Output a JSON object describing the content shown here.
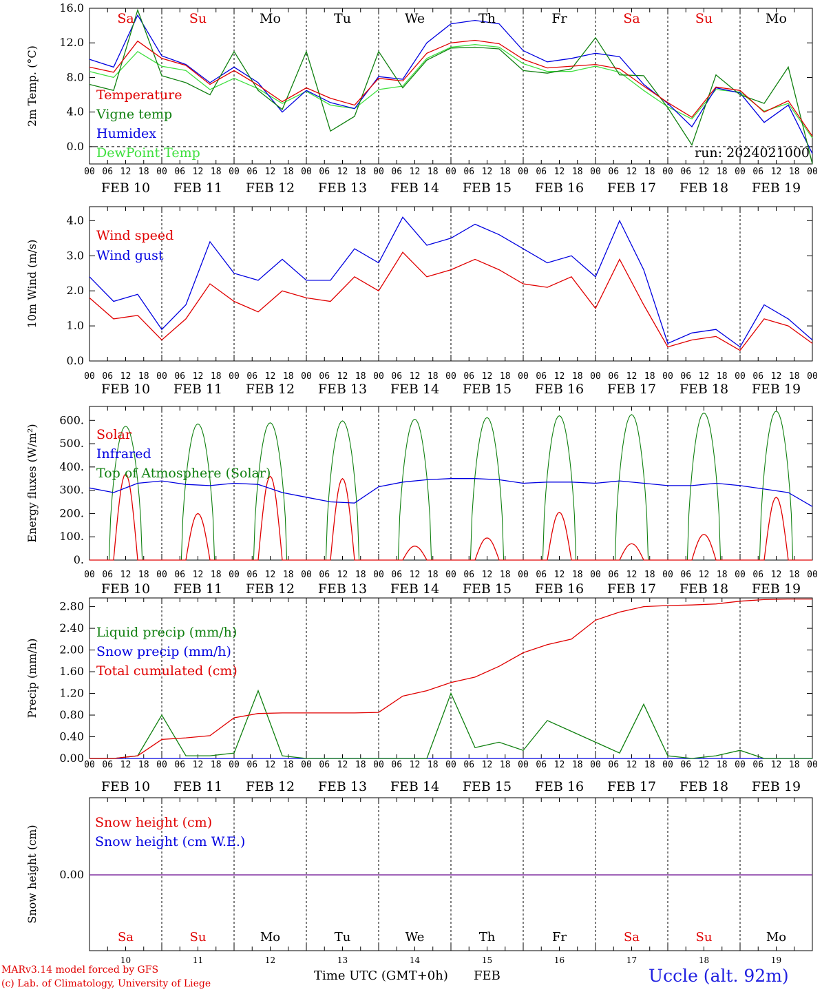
{
  "chart_data": [
    {
      "type": "line",
      "ylabel": "2m Temp. (°C)",
      "ylim": [
        -2,
        16
      ],
      "yticks": [
        16.0,
        12.0,
        8.0,
        4.0,
        0.0
      ],
      "yticks_labels": [
        "16.0",
        "12.0",
        "8.0",
        "4.0",
        "0.0"
      ],
      "zero_dashed_line": true,
      "day_labels_top": [
        "Sa",
        "Su",
        "Mo",
        "Tu",
        "We",
        "Th",
        "Fr",
        "Sa",
        "Su",
        "Mo"
      ],
      "run_label": "run: 2024021000",
      "x_hours": [
        0,
        6,
        12,
        18,
        24,
        30,
        36,
        42,
        48,
        54,
        60,
        66,
        72,
        78,
        84,
        90,
        96,
        102,
        108,
        114,
        120,
        126,
        132,
        138,
        144,
        150,
        156,
        162,
        168,
        174,
        180,
        186,
        192,
        198,
        204,
        210,
        216,
        222,
        228,
        234,
        240
      ],
      "series": [
        {
          "name": "Temperature",
          "color": "#e00000",
          "values": [
            9.2,
            8.6,
            12.2,
            10.2,
            9.4,
            7.2,
            8.8,
            7.1,
            5.2,
            6.8,
            5.6,
            4.8,
            7.9,
            7.6,
            10.8,
            12.0,
            12.3,
            11.9,
            10.1,
            9.1,
            9.3,
            9.5,
            9.0,
            7.0,
            5.1,
            3.4,
            6.9,
            6.5,
            4.0,
            5.3,
            1.2
          ]
        },
        {
          "name": "Vigne temp",
          "color": "#108010",
          "values": [
            7.2,
            6.5,
            15.8,
            8.2,
            7.4,
            6.0,
            11.0,
            6.5,
            4.3,
            11.0,
            1.8,
            3.5,
            11.0,
            6.8,
            10.0,
            11.4,
            11.5,
            11.3,
            8.8,
            8.5,
            9.0,
            12.6,
            8.3,
            8.2,
            4.5,
            0.2,
            8.3,
            6.0,
            5.0,
            9.2,
            -2.0
          ]
        },
        {
          "name": "Humidex",
          "color": "#0000e0",
          "values": [
            10.1,
            9.2,
            15.2,
            10.5,
            9.5,
            7.4,
            9.2,
            7.4,
            4.0,
            6.5,
            5.1,
            4.4,
            8.1,
            7.8,
            12.0,
            14.2,
            14.6,
            14.2,
            11.1,
            9.8,
            10.2,
            10.8,
            10.4,
            7.2,
            5.0,
            2.3,
            6.8,
            6.2,
            2.8,
            4.8,
            -0.8
          ]
        },
        {
          "name": "DewPoint Temp",
          "color": "#40e040",
          "values": [
            8.7,
            8.0,
            11.0,
            9.3,
            8.8,
            6.6,
            7.9,
            6.7,
            5.0,
            6.4,
            4.8,
            4.4,
            6.6,
            7.0,
            10.2,
            11.5,
            11.8,
            11.5,
            9.6,
            8.7,
            8.7,
            9.3,
            8.6,
            6.5,
            4.6,
            3.2,
            6.6,
            6.3,
            4.1,
            5.0,
            1.0
          ]
        }
      ]
    },
    {
      "type": "line",
      "ylabel": "10m Wind (m/s)",
      "ylim": [
        0,
        4.4
      ],
      "yticks": [
        4.0,
        3.0,
        2.0,
        1.0,
        0.0
      ],
      "yticks_labels": [
        "4.0",
        "3.0",
        "2.0",
        "1.0",
        "0.0"
      ],
      "series": [
        {
          "name": "Wind speed",
          "color": "#e00000",
          "values": [
            1.8,
            1.2,
            1.3,
            0.6,
            1.2,
            2.2,
            1.7,
            1.4,
            2.0,
            1.8,
            1.7,
            2.4,
            2.0,
            3.1,
            2.4,
            2.6,
            2.9,
            2.6,
            2.2,
            2.1,
            2.4,
            1.5,
            2.9,
            1.6,
            0.4,
            0.6,
            0.7,
            0.3,
            1.2,
            1.0,
            0.5
          ]
        },
        {
          "name": "Wind gust",
          "color": "#0000e0",
          "values": [
            2.4,
            1.7,
            1.9,
            0.9,
            1.6,
            3.4,
            2.5,
            2.3,
            2.9,
            2.3,
            2.3,
            3.2,
            2.8,
            4.1,
            3.3,
            3.5,
            3.9,
            3.6,
            3.2,
            2.8,
            3.0,
            2.4,
            4.0,
            2.6,
            0.5,
            0.8,
            0.9,
            0.4,
            1.6,
            1.2,
            0.6
          ]
        }
      ]
    },
    {
      "type": "line",
      "ylabel": "Energy fluxes (W/m²)",
      "ylim": [
        0,
        660
      ],
      "yticks": [
        600,
        500,
        400,
        300,
        200,
        100,
        0
      ],
      "yticks_labels": [
        "600.",
        "500.",
        "400.",
        "300.",
        "200.",
        "100.",
        "0."
      ],
      "series": [
        {
          "name": "Solar",
          "color": "#e00000",
          "day_peaks": [
            370,
            200,
            360,
            350,
            60,
            95,
            205,
            70,
            110,
            270
          ]
        },
        {
          "name": "Infrared",
          "color": "#0000e0",
          "values": [
            310,
            290,
            330,
            340,
            325,
            320,
            330,
            325,
            290,
            270,
            250,
            245,
            315,
            335,
            345,
            350,
            350,
            345,
            330,
            335,
            335,
            330,
            340,
            330,
            320,
            320,
            330,
            320,
            305,
            290,
            230
          ]
        },
        {
          "name": "Top of Atmosphere (Solar)",
          "color": "#108010",
          "day_peaks": [
            575,
            585,
            590,
            598,
            605,
            612,
            620,
            625,
            632,
            640
          ]
        }
      ]
    },
    {
      "type": "line",
      "ylabel": "Precip (mm/h)",
      "ylim": [
        0,
        2.96
      ],
      "yticks": [
        2.8,
        2.4,
        2.0,
        1.6,
        1.2,
        0.8,
        0.4,
        0.0
      ],
      "yticks_labels": [
        "2.80",
        "2.40",
        "2.00",
        "1.60",
        "1.20",
        "0.80",
        "0.40",
        "0.00"
      ],
      "series": [
        {
          "name": "Liquid precip (mm/h)",
          "color": "#108010",
          "values": [
            0,
            0,
            0.05,
            0.8,
            0.05,
            0.05,
            0.1,
            1.25,
            0.05,
            0,
            0,
            0,
            0,
            0,
            0,
            1.2,
            0.2,
            0.3,
            0.15,
            0.7,
            0.5,
            0.3,
            0.1,
            1.0,
            0.05,
            0,
            0.05,
            0.15,
            0,
            0,
            0
          ]
        },
        {
          "name": "Snow precip (mm/h)",
          "color": "#0000e0",
          "values": [
            0,
            0,
            0,
            0,
            0,
            0,
            0,
            0,
            0,
            0,
            0,
            0,
            0,
            0,
            0,
            0,
            0,
            0,
            0,
            0,
            0,
            0,
            0,
            0,
            0,
            0,
            0,
            0,
            0,
            0,
            0
          ]
        },
        {
          "name": "Total cumulated (cm)",
          "color": "#e00000",
          "values": [
            0,
            0,
            0.05,
            0.35,
            0.38,
            0.42,
            0.75,
            0.83,
            0.84,
            0.84,
            0.84,
            0.84,
            0.85,
            1.15,
            1.25,
            1.4,
            1.5,
            1.7,
            1.95,
            2.1,
            2.2,
            2.55,
            2.7,
            2.8,
            2.82,
            2.83,
            2.85,
            2.9,
            2.93,
            2.94,
            2.94
          ]
        }
      ]
    },
    {
      "type": "line",
      "ylabel": "Snow height (cm)",
      "yticks": [
        0.0
      ],
      "yticks_labels": [
        "0.00"
      ],
      "series": [
        {
          "name": "Snow height (cm)",
          "color": "#e00000",
          "values": [
            0,
            0
          ]
        },
        {
          "name": "Snow height (cm W.E.)",
          "color": "#0000e0",
          "values": [
            0,
            0
          ]
        }
      ],
      "day_labels_bottom": [
        "Sa",
        "Su",
        "Mo",
        "Tu",
        "We",
        "Th",
        "Fr",
        "Sa",
        "Su",
        "Mo"
      ],
      "day_numbers": [
        "10",
        "11",
        "12",
        "13",
        "14",
        "15",
        "16",
        "17",
        "18",
        "19"
      ]
    }
  ],
  "axis": {
    "hour_ticks": [
      "00",
      "06",
      "12",
      "18"
    ],
    "final_tick": "00",
    "date_labels": [
      "FEB 10",
      "FEB 11",
      "FEB 12",
      "FEB 13",
      "FEB 14",
      "FEB 15",
      "FEB 16",
      "FEB 17",
      "FEB 18",
      "FEB 19"
    ],
    "weekend_color": "#e00000",
    "weekday_color": "#000000"
  },
  "footer": {
    "credit_line1": "MARv3.14 model forced by GFS",
    "credit_line2": "(c) Lab. of Climatology, University of Liege",
    "xlabel": "Time UTC (GMT+0h)",
    "xlabel_month": "FEB",
    "station": "Uccle (alt. 92m)"
  }
}
